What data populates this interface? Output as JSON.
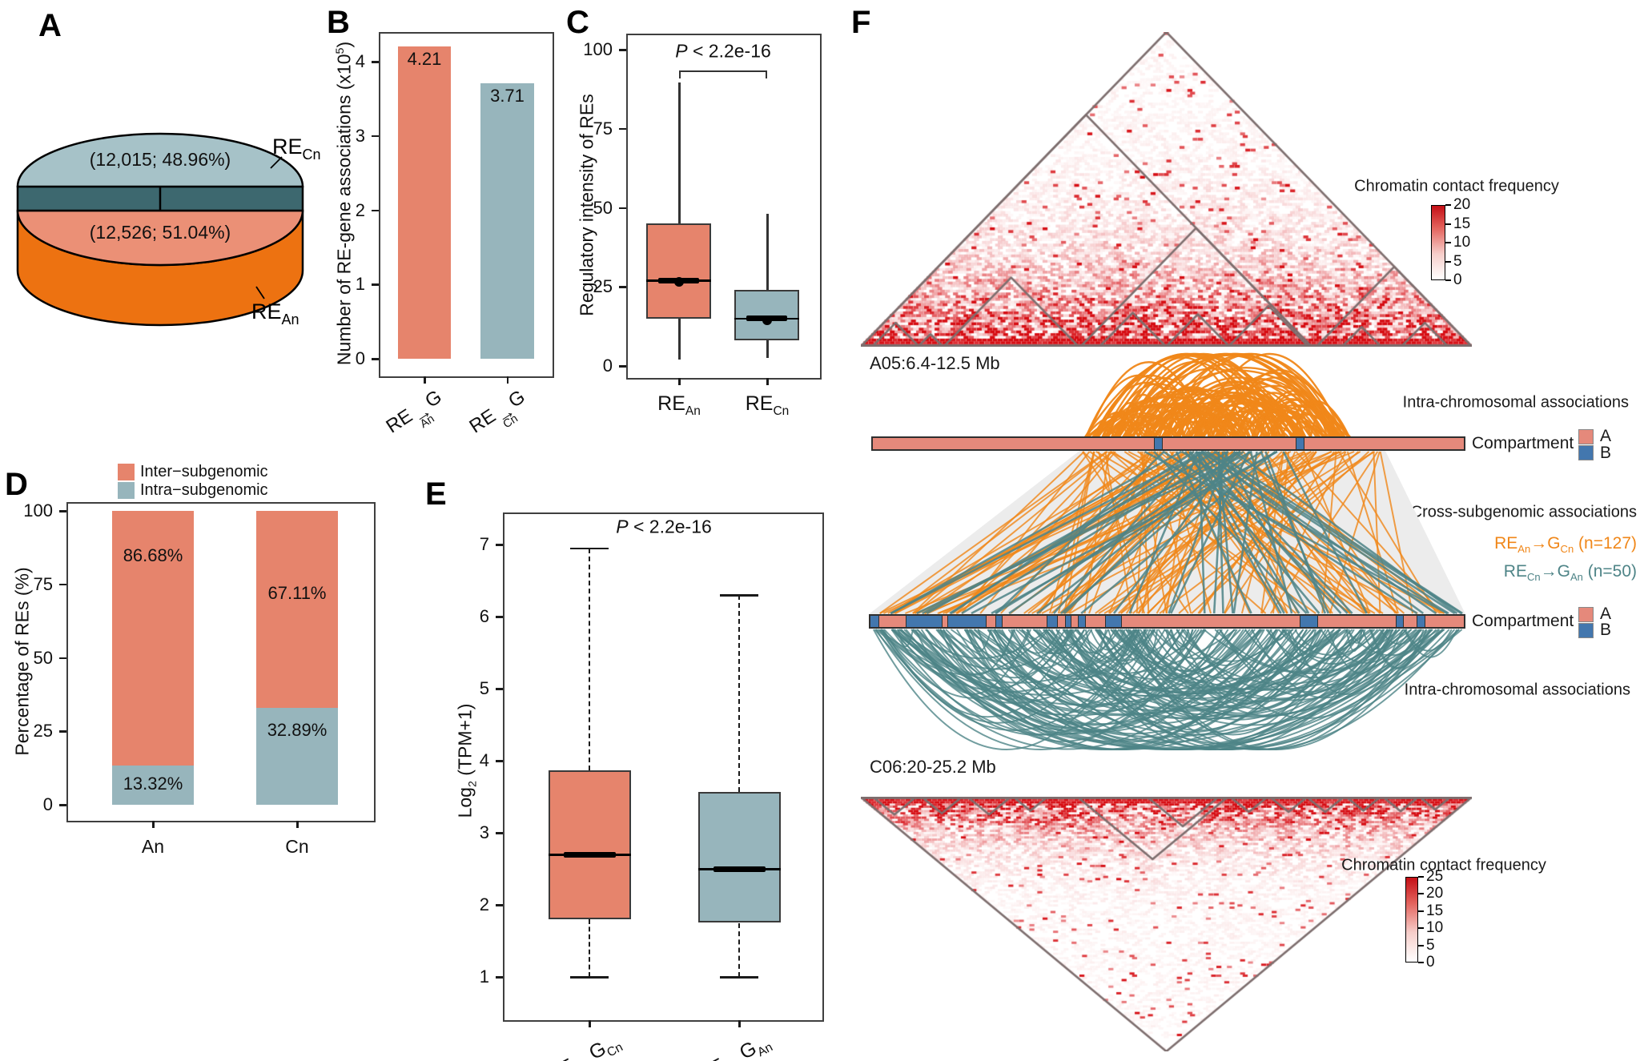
{
  "panel_labels": {
    "A": "A",
    "B": "B",
    "C": "C",
    "D": "D",
    "E": "E",
    "F": "F"
  },
  "colors": {
    "salmon": "#E6846C",
    "bluegray": "#97B5BC",
    "comp_a": "#E5897B",
    "comp_b": "#4377AE",
    "orange": "#F08719",
    "teal": "#4E8487",
    "heat_red": "#D40F16",
    "tad": "#7D6E6E",
    "pie_blue": "#A6C2C8",
    "pie_dark": "#3D686F",
    "pie_salmon": "#EB9076",
    "pie_orange": "#ED7211",
    "box_border": "#3a3a3a"
  },
  "chart_data": [
    {
      "id": "A",
      "type": "pie",
      "slices": [
        {
          "label_pre": "RE",
          "label_sub": "Cn",
          "count": "12,015",
          "pct": 48.96,
          "text": "(12,015; 48.96%)",
          "face_color_key": "pie_blue",
          "side_color_key": "pie_dark"
        },
        {
          "label_pre": "RE",
          "label_sub": "An",
          "count": "12,526",
          "pct": 51.04,
          "text": "(12,526; 51.04%)",
          "face_color_key": "pie_salmon",
          "side_color_key": "pie_orange"
        }
      ]
    },
    {
      "id": "B",
      "type": "bar",
      "ylabel_parts": {
        "pre": "Number of RE-gene associations (x10",
        "sup": "5",
        "post": ")"
      },
      "ylim": [
        0,
        4.3
      ],
      "yticks": [
        0,
        1,
        2,
        3,
        4
      ],
      "categories": [
        {
          "pre": "RE",
          "over": "→",
          "over_sub": "An",
          "post": "G"
        },
        {
          "pre": "RE",
          "over": "→",
          "over_sub": "Cn",
          "post": "G"
        }
      ],
      "values": [
        4.21,
        3.71
      ],
      "value_labels": [
        "4.21",
        "3.71"
      ],
      "bar_color_keys": [
        "salmon",
        "bluegray"
      ]
    },
    {
      "id": "C",
      "type": "box",
      "ylabel": "Regulatory intensity of REs",
      "yticks": [
        0,
        25,
        50,
        75,
        100
      ],
      "ylim": [
        -5,
        108
      ],
      "pvalue": {
        "p": "P",
        "rest": " < 2.2e-16"
      },
      "whisker_style": "solid",
      "boxes": [
        {
          "cat_pre": "RE",
          "cat_sub": "An",
          "color_key": "salmon",
          "min": 2,
          "q1": 15,
          "median": 27,
          "mean": 26.5,
          "q3": 45,
          "max": 89.5
        },
        {
          "cat_pre": "RE",
          "cat_sub": "Cn",
          "color_key": "bluegray",
          "min": 2.5,
          "q1": 8,
          "median": 15,
          "mean": 14.5,
          "q3": 24,
          "max": 48
        }
      ]
    },
    {
      "id": "D",
      "type": "stacked_bar",
      "ylabel": "Percentage of  REs (%)",
      "yticks": [
        0,
        25,
        50,
        75,
        100
      ],
      "ylim": [
        0,
        100
      ],
      "legend": [
        {
          "label": "Inter−subgenomic",
          "color_key": "salmon"
        },
        {
          "label": "Intra−subgenomic",
          "color_key": "bluegray"
        }
      ],
      "categories": [
        "An",
        "Cn"
      ],
      "series": [
        {
          "name": "Inter−subgenomic",
          "color_key": "salmon",
          "values": [
            86.68,
            67.11
          ]
        },
        {
          "name": "Intra−subgenomic",
          "color_key": "bluegray",
          "values": [
            13.32,
            32.89
          ]
        }
      ],
      "value_labels": {
        "inter": [
          "86.68%",
          "67.11%"
        ],
        "intra": [
          "13.32%",
          "32.89%"
        ]
      }
    },
    {
      "id": "E",
      "type": "box",
      "ylabel_parts": {
        "pre": "Log",
        "sub": "2",
        "post": " (TPM+1)"
      },
      "yticks": [
        1,
        2,
        3,
        4,
        5,
        6,
        7
      ],
      "ylim": [
        0.7,
        7.4
      ],
      "pvalue": {
        "p": "P",
        "rest": " < 2.2e-16"
      },
      "whisker_style": "dashed",
      "boxes": [
        {
          "cat": {
            "pre": "RE",
            "over": "→",
            "over_sub": "An",
            "post": "G",
            "post_sub": "Cn"
          },
          "color_key": "salmon",
          "min": 1,
          "q1": 1.8,
          "median": 2.7,
          "q3": 3.87,
          "max": 6.95
        },
        {
          "cat": {
            "pre": "RE",
            "over": "→",
            "over_sub": "Cn",
            "post": "G",
            "post_sub": "An"
          },
          "color_key": "bluegray",
          "min": 1,
          "q1": 1.75,
          "median": 2.5,
          "q3": 3.57,
          "max": 6.3
        }
      ]
    },
    {
      "id": "F_top",
      "type": "heatmap",
      "region": "A05:6.4-12.5 Mb",
      "orientation": "up",
      "colorbar": {
        "title": "Chromatin contact frequency",
        "ticks": [
          20,
          15,
          10,
          5,
          0
        ],
        "max": 20
      },
      "tads": [
        [
          0,
          1
        ],
        [
          0,
          0.737
        ],
        [
          0.36,
          0.737
        ],
        [
          0.136,
          0.356
        ],
        [
          0.019,
          0.095
        ],
        [
          0.094,
          0.134
        ],
        [
          0.391,
          0.499
        ],
        [
          0.5,
          0.603
        ],
        [
          0.602,
          0.732
        ],
        [
          0.746,
          1
        ],
        [
          0.788,
          0.851
        ],
        [
          0.885,
          0.961
        ]
      ]
    },
    {
      "id": "F_bottom",
      "type": "heatmap",
      "region": "C06:20-25.2 Mb",
      "orientation": "down",
      "colorbar": {
        "title": "Chromatin contact frequency",
        "ticks": [
          25,
          20,
          15,
          10,
          5,
          0
        ],
        "max": 25
      },
      "tads": [
        [
          0,
          1
        ],
        [
          0.355,
          0.6
        ],
        [
          0.469,
          0.585
        ],
        [
          0.02,
          0.09
        ],
        [
          0.1,
          0.165
        ],
        [
          0.175,
          0.245
        ],
        [
          0.25,
          0.305
        ],
        [
          0.605,
          0.665
        ],
        [
          0.67,
          0.73
        ],
        [
          0.73,
          0.79
        ],
        [
          0.795,
          0.85
        ],
        [
          0.855,
          0.912
        ],
        [
          0.915,
          0.965
        ]
      ]
    }
  ],
  "panelF": {
    "labels": {
      "intra_top": "Intra-chromosomal associations",
      "cross": "Cross-subgenomic associations",
      "intra_bottom": "Intra-chromosomal associations",
      "compartment": "Compartment",
      "comp_a": "A",
      "comp_b": "B"
    },
    "cross_links": [
      {
        "pre": "RE",
        "sub": "An",
        "arrow": "→",
        "post": "G",
        "post_sub": "Cn",
        "n_label": " (n=127)",
        "n": 127,
        "color_key": "orange"
      },
      {
        "pre": "RE",
        "sub": "Cn",
        "arrow": "→",
        "post": "G",
        "post_sub": "An",
        "n_label": " (n=50)",
        "n": 50,
        "color_key": "teal"
      }
    ],
    "compartment_top": [
      [
        "A",
        47.5
      ],
      [
        "B",
        1.4
      ],
      [
        "A",
        22.6
      ],
      [
        "B",
        1.4
      ],
      [
        "A",
        27.1
      ]
    ],
    "compartment_bottom": [
      [
        "B",
        1.4
      ],
      [
        "A",
        4.6
      ],
      [
        "B",
        6
      ],
      [
        "A",
        1
      ],
      [
        "B",
        6.5
      ],
      [
        "A",
        1.5
      ],
      [
        "B",
        1.2
      ],
      [
        "A",
        7.5
      ],
      [
        "B",
        1.7
      ],
      [
        "A",
        1.4
      ],
      [
        "B",
        1
      ],
      [
        "A",
        1.2
      ],
      [
        "B",
        1.2
      ],
      [
        "A",
        3.3
      ],
      [
        "B",
        2.7
      ],
      [
        "A",
        30.1
      ],
      [
        "B",
        3
      ],
      [
        "A",
        13.2
      ],
      [
        "B",
        1.3
      ],
      [
        "A",
        2.2
      ],
      [
        "B",
        1.4
      ],
      [
        "A",
        6.6
      ]
    ]
  }
}
